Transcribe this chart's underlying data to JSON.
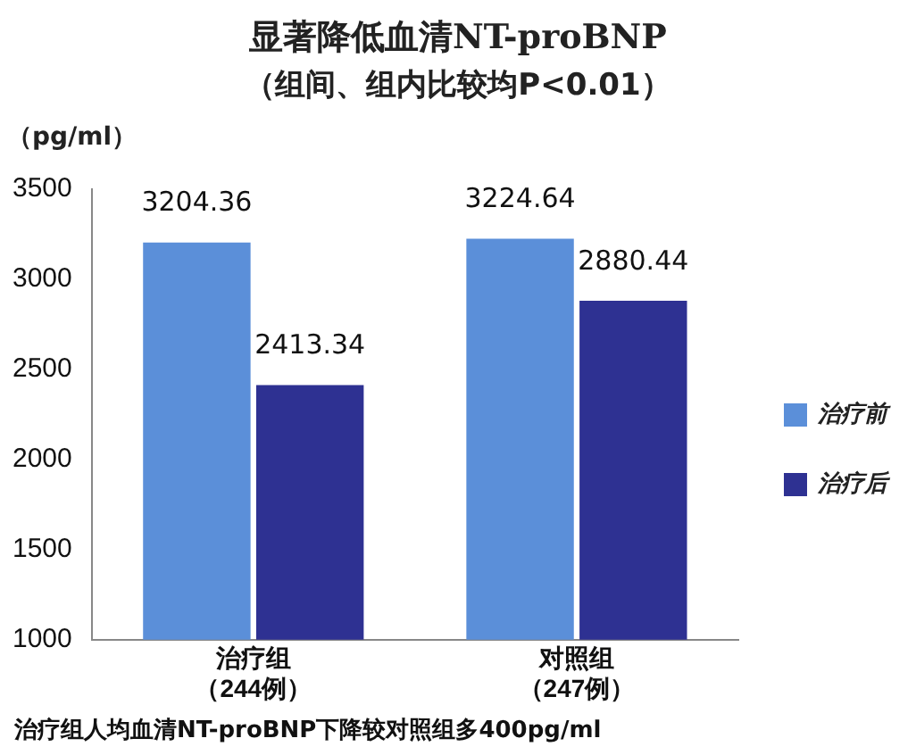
{
  "chart_data": {
    "type": "bar",
    "title": "显著降低血清NT-proBNP",
    "subtitle": "（组间、组内比较均P<0.01）",
    "ylabel": "（pg/ml）",
    "categories": [
      "治疗组（244例）",
      "对照组（247例）"
    ],
    "series": [
      {
        "name": "治疗前",
        "color": "#5b8fd9",
        "values": [
          3204.36,
          3224.64
        ]
      },
      {
        "name": "治疗后",
        "color": "#2e3192",
        "values": [
          2413.34,
          2880.44
        ]
      }
    ],
    "ylim": [
      1000,
      3500
    ],
    "yticks": [
      1000,
      1500,
      2000,
      2500,
      3000,
      3500
    ],
    "grid": false,
    "legend": "right",
    "data_labels": true,
    "annotations": [
      "治疗组人均血清NT-proBNP下降较对照组多400pg/ml"
    ]
  }
}
